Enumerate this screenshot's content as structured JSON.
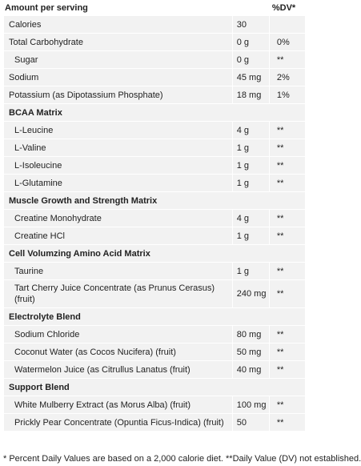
{
  "header": {
    "label": "Amount per serving",
    "dv": "%DV*"
  },
  "facts": [
    {
      "name": "Calories",
      "amount": "30"
    },
    {
      "name": "Total Carbohydrate",
      "amount": "0 g",
      "dv": "0%",
      "sub": [
        {
          "name": "Sugar",
          "amount": "0 g",
          "dv": "**"
        }
      ]
    },
    {
      "name": "Sodium",
      "amount": "45 mg",
      "dv": "2%"
    },
    {
      "name": "Potassium (as Dipotassium Phosphate)",
      "amount": "18 mg",
      "dv": "1%"
    }
  ],
  "blends": [
    {
      "title": "BCAA Matrix",
      "items": [
        {
          "name": "L-Leucine",
          "amount": "4 g",
          "dv": "**"
        },
        {
          "name": "L-Valine",
          "amount": "1 g",
          "dv": "**"
        },
        {
          "name": "L-Isoleucine",
          "amount": "1 g",
          "dv": "**"
        },
        {
          "name": "L-Glutamine",
          "amount": "1 g",
          "dv": "**"
        }
      ]
    },
    {
      "title": "Muscle Growth and Strength Matrix",
      "items": [
        {
          "name": "Creatine Monohydrate",
          "amount": "4 g",
          "dv": "**"
        },
        {
          "name": "Creatine HCl",
          "amount": "1 g",
          "dv": "**"
        }
      ]
    },
    {
      "title": "Cell Volumzing Amino Acid Matrix",
      "items": [
        {
          "name": "Taurine",
          "amount": "1 g",
          "dv": "**"
        },
        {
          "name": "Tart Cherry Juice Concentrate (as Prunus Cerasus) (fruit)",
          "amount": "240 mg",
          "dv": "**"
        }
      ]
    },
    {
      "title": "Electrolyte Blend",
      "items": [
        {
          "name": "Sodium Chloride",
          "amount": "80 mg",
          "dv": "**"
        },
        {
          "name": "Coconut Water (as Cocos Nucifera) (fruit)",
          "amount": "50 mg",
          "dv": "**"
        },
        {
          "name": "Watermelon Juice (as Citrullus Lanatus (fruit)",
          "amount": "40 mg",
          "dv": "**"
        }
      ]
    },
    {
      "title": "Support Blend",
      "items": [
        {
          "name": "White Mulberry Extract (as Morus Alba) (fruit)",
          "amount": "100 mg",
          "dv": "**"
        },
        {
          "name": "Prickly Pear Concentrate (Opuntia Ficus-Indica) (fruit)",
          "amount": "50",
          "dv": "**"
        }
      ]
    }
  ],
  "footnote": "* Percent Daily Values are based on a 2,000 calorie diet. **Daily Value (DV) not established."
}
